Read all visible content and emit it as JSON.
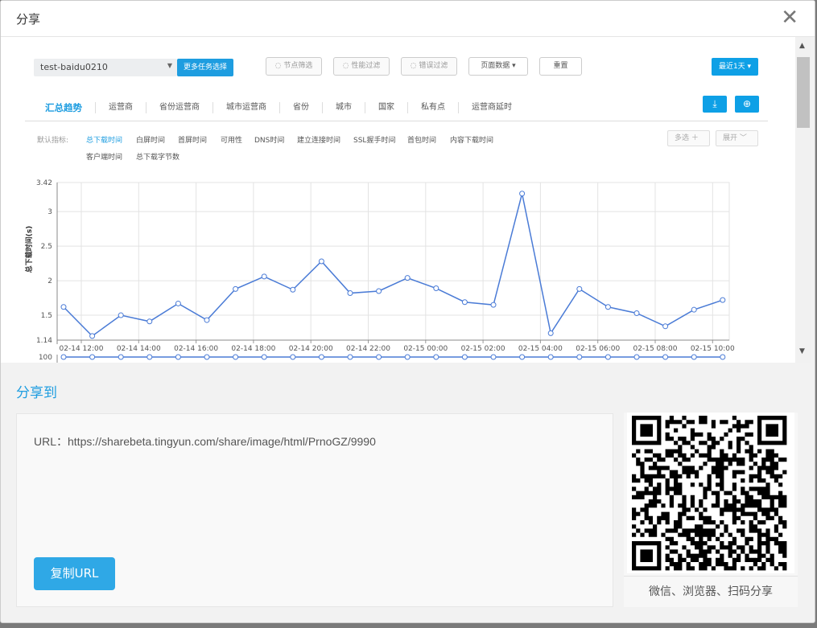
{
  "modal": {
    "title": "分享",
    "close_icon": "close-icon"
  },
  "toolbar": {
    "task_select": "test-baidu0210",
    "more_tasks": "更多任务选择",
    "node_filter": "节点筛选",
    "perf_filter": "性能过滤",
    "error_filter": "错误过滤",
    "page_data": "页面数据 ▾",
    "reset": "重置",
    "time_range": "最近1天 ▾"
  },
  "tabs": [
    "汇总趋势",
    "运营商",
    "省份运营商",
    "城市运营商",
    "省份",
    "城市",
    "国家",
    "私有点",
    "运营商延时"
  ],
  "metrics": {
    "label": "默认指标:",
    "items": [
      "总下载时间",
      "白屏时间",
      "首屏时间",
      "可用性",
      "DNS时间",
      "建立连接时间",
      "SSL握手时间",
      "首包时间",
      "内容下载时间",
      "客户端时间",
      "总下载字节数"
    ],
    "active": "总下载时间",
    "multi": "多选 ＋",
    "expand": "展开 ﹀"
  },
  "accent": "#1e9de0",
  "chart_data": {
    "type": "line",
    "ylabel": "总下载时间(s)",
    "ylim": [
      1.14,
      3.42
    ],
    "y_ticks": [
      "3.42",
      "3",
      "2.5",
      "2",
      "1.5",
      "1.14"
    ],
    "x_tick_labels": [
      "02-14 12:00",
      "02-14 14:00",
      "02-14 16:00",
      "02-14 18:00",
      "02-14 20:00",
      "02-14 22:00",
      "02-15 00:00",
      "02-15 02:00",
      "02-15 04:00",
      "02-15 06:00",
      "02-15 08:00",
      "02-15 10:00"
    ],
    "values": [
      1.62,
      1.2,
      1.5,
      1.41,
      1.67,
      1.43,
      1.88,
      2.06,
      1.87,
      2.28,
      1.82,
      1.85,
      2.04,
      1.89,
      1.69,
      1.65,
      3.26,
      1.24,
      1.88,
      1.62,
      1.53,
      1.34,
      1.58,
      1.72
    ],
    "grid": true,
    "line_color": "#4a7bd6",
    "second_chart_top_tick": "100"
  },
  "share": {
    "title": "分享到",
    "url_text": "URL：https://sharebeta.tingyun.com/share/image/html/PrnoGZ/9990",
    "copy_button": "复制URL",
    "qr_caption": "微信、浏览器、扫码分享"
  }
}
